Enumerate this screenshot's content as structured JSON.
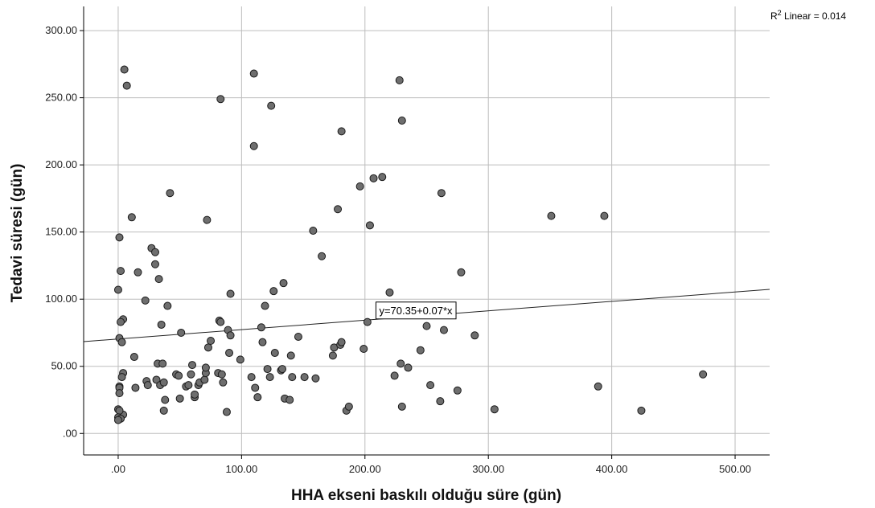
{
  "chart_data": {
    "type": "scatter",
    "xlabel": "HHA ekseni baskılı olduğu süre (gün)",
    "ylabel": "Tedavi süresi (gün)",
    "xlim": [
      -28,
      528
    ],
    "ylim": [
      -16,
      318
    ],
    "x_ticks": [
      0,
      100,
      200,
      300,
      400,
      500
    ],
    "x_tick_labels": [
      ".00",
      "100.00",
      "200.00",
      "300.00",
      "400.00",
      "500.00"
    ],
    "y_ticks": [
      0,
      50,
      100,
      150,
      200,
      250,
      300
    ],
    "y_tick_labels": [
      ".00",
      "50.00",
      "100.00",
      "150.00",
      "200.00",
      "250.00",
      "300.00"
    ],
    "grid": true,
    "fit_line": {
      "intercept": 70.35,
      "slope": 0.07,
      "label": "y=70.35+0.07*x",
      "label_at_x": 205
    },
    "r2_label": {
      "prefix": "R",
      "sup": "2",
      "text": " Linear = 0.014"
    },
    "points": [
      [
        5,
        271
      ],
      [
        7,
        259
      ],
      [
        11,
        161
      ],
      [
        1,
        146
      ],
      [
        2,
        121
      ],
      [
        0,
        107
      ],
      [
        4,
        85
      ],
      [
        2,
        83
      ],
      [
        1,
        71
      ],
      [
        3,
        68
      ],
      [
        13,
        57
      ],
      [
        4,
        45
      ],
      [
        3,
        42
      ],
      [
        1,
        35
      ],
      [
        1,
        34
      ],
      [
        1,
        30
      ],
      [
        4,
        14
      ],
      [
        0,
        18
      ],
      [
        1,
        17
      ],
      [
        0,
        12
      ],
      [
        2,
        11
      ],
      [
        0,
        10
      ],
      [
        16,
        120
      ],
      [
        22,
        99
      ],
      [
        27,
        138
      ],
      [
        30,
        135
      ],
      [
        30,
        126
      ],
      [
        33,
        115
      ],
      [
        35,
        81
      ],
      [
        40,
        95
      ],
      [
        42,
        179
      ],
      [
        14,
        34
      ],
      [
        23,
        39
      ],
      [
        24,
        36
      ],
      [
        31,
        40
      ],
      [
        32,
        52
      ],
      [
        34,
        36
      ],
      [
        36,
        52
      ],
      [
        37,
        38
      ],
      [
        38,
        25
      ],
      [
        37,
        17
      ],
      [
        47,
        44
      ],
      [
        49,
        43
      ],
      [
        51,
        75
      ],
      [
        50,
        26
      ],
      [
        55,
        35
      ],
      [
        57,
        36
      ],
      [
        59,
        44
      ],
      [
        60,
        51
      ],
      [
        62,
        27
      ],
      [
        62,
        29
      ],
      [
        65,
        36
      ],
      [
        66,
        38
      ],
      [
        70,
        40
      ],
      [
        71,
        45
      ],
      [
        71,
        49
      ],
      [
        72,
        159
      ],
      [
        73,
        64
      ],
      [
        75,
        69
      ],
      [
        81,
        45
      ],
      [
        82,
        84
      ],
      [
        83,
        83
      ],
      [
        83,
        249
      ],
      [
        84,
        44
      ],
      [
        85,
        38
      ],
      [
        88,
        16
      ],
      [
        89,
        77
      ],
      [
        90,
        60
      ],
      [
        91,
        73
      ],
      [
        91,
        104
      ],
      [
        99,
        55
      ],
      [
        108,
        42
      ],
      [
        110,
        268
      ],
      [
        110,
        214
      ],
      [
        111,
        34
      ],
      [
        113,
        27
      ],
      [
        116,
        79
      ],
      [
        117,
        68
      ],
      [
        119,
        95
      ],
      [
        121,
        48
      ],
      [
        123,
        42
      ],
      [
        124,
        244
      ],
      [
        126,
        106
      ],
      [
        127,
        60
      ],
      [
        132,
        47
      ],
      [
        133,
        48
      ],
      [
        134,
        112
      ],
      [
        135,
        26
      ],
      [
        139,
        25
      ],
      [
        140,
        58
      ],
      [
        141,
        42
      ],
      [
        146,
        72
      ],
      [
        151,
        42
      ],
      [
        158,
        151
      ],
      [
        160,
        41
      ],
      [
        165,
        132
      ],
      [
        174,
        58
      ],
      [
        175,
        64
      ],
      [
        178,
        167
      ],
      [
        180,
        66
      ],
      [
        181,
        68
      ],
      [
        181,
        225
      ],
      [
        185,
        17
      ],
      [
        187,
        20
      ],
      [
        196,
        184
      ],
      [
        199,
        63
      ],
      [
        202,
        83
      ],
      [
        204,
        155
      ],
      [
        207,
        190
      ],
      [
        214,
        191
      ],
      [
        220,
        105
      ],
      [
        224,
        43
      ],
      [
        228,
        263
      ],
      [
        229,
        52
      ],
      [
        230,
        233
      ],
      [
        230,
        20
      ],
      [
        235,
        49
      ],
      [
        245,
        62
      ],
      [
        250,
        80
      ],
      [
        253,
        36
      ],
      [
        261,
        24
      ],
      [
        262,
        179
      ],
      [
        264,
        77
      ],
      [
        275,
        32
      ],
      [
        278,
        120
      ],
      [
        289,
        73
      ],
      [
        305,
        18
      ],
      [
        351,
        162
      ],
      [
        389,
        35
      ],
      [
        394,
        162
      ],
      [
        424,
        17
      ],
      [
        474,
        44
      ]
    ]
  }
}
